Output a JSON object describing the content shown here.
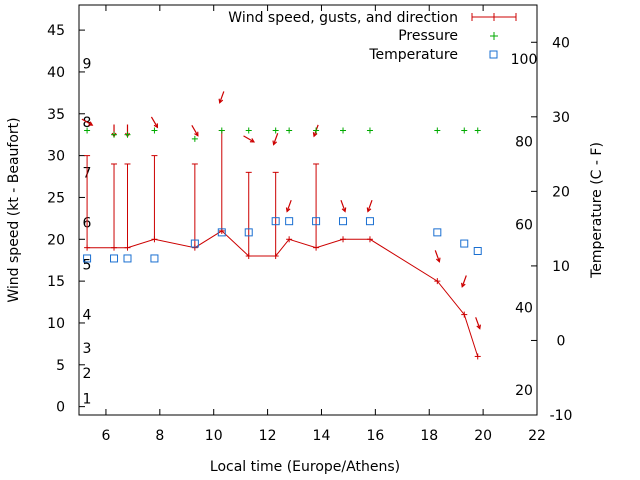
{
  "chart_data": {
    "type": "line",
    "xlabel": "Local time (Europe/Athens)",
    "ylabel_left": "Wind speed (kt - Beaufort)",
    "ylabel_right": "Temperature (C - F)",
    "xlim": [
      5,
      22
    ],
    "ylim_left": [
      -1,
      48
    ],
    "ylim_right_celsius": [
      -10,
      45
    ],
    "x_ticks": [
      6,
      8,
      10,
      12,
      14,
      16,
      18,
      20,
      22
    ],
    "y_ticks_left": [
      0,
      5,
      10,
      15,
      20,
      25,
      30,
      35,
      40,
      45
    ],
    "y_ticks_right_celsius": [
      -10,
      0,
      10,
      20,
      30,
      40
    ],
    "fahrenheit_labels": [
      20,
      40,
      60,
      80,
      100
    ],
    "beaufort_labels": [
      1,
      2,
      3,
      4,
      5,
      6,
      7,
      8,
      9
    ],
    "legend": {
      "position": "top-right",
      "entries": [
        "Wind speed, gusts, and direction",
        "Pressure",
        "Temperature"
      ]
    },
    "series": [
      {
        "name": "Wind speed, gusts, and direction",
        "color": "#cc0000",
        "points": [
          {
            "x": 5.3,
            "speed": 19,
            "gust": 30,
            "dir_deg": 300
          },
          {
            "x": 6.3,
            "speed": 19,
            "gust": 29,
            "dir_deg": 0
          },
          {
            "x": 6.8,
            "speed": 19,
            "gust": 29,
            "dir_deg": 0
          },
          {
            "x": 7.8,
            "speed": 20,
            "gust": 30,
            "dir_deg": 330
          },
          {
            "x": 9.3,
            "speed": 19,
            "gust": 29,
            "dir_deg": 330
          },
          {
            "x": 10.3,
            "speed": 21,
            "gust": 33,
            "dir_deg": 20
          },
          {
            "x": 11.3,
            "speed": 18,
            "gust": 28,
            "dir_deg": 300
          },
          {
            "x": 12.3,
            "speed": 18,
            "gust": 28,
            "dir_deg": 20
          },
          {
            "x": 12.8,
            "speed": 20,
            "gust": null,
            "dir_deg": 20
          },
          {
            "x": 13.8,
            "speed": 19,
            "gust": 29,
            "dir_deg": 20
          },
          {
            "x": 14.8,
            "speed": 20,
            "gust": null,
            "dir_deg": 340
          },
          {
            "x": 15.8,
            "speed": 20,
            "gust": null,
            "dir_deg": 20
          },
          {
            "x": 18.3,
            "speed": 15,
            "gust": null,
            "dir_deg": 340
          },
          {
            "x": 19.3,
            "speed": 11,
            "gust": null,
            "dir_deg": 20
          },
          {
            "x": 19.8,
            "speed": 6,
            "gust": null,
            "dir_deg": 340
          }
        ]
      },
      {
        "name": "Pressure",
        "color": "#00aa00",
        "points": [
          {
            "x": 5.3,
            "y": 33
          },
          {
            "x": 6.3,
            "y": 32.5
          },
          {
            "x": 6.8,
            "y": 32.5
          },
          {
            "x": 7.8,
            "y": 33
          },
          {
            "x": 9.3,
            "y": 32
          },
          {
            "x": 10.3,
            "y": 33
          },
          {
            "x": 11.3,
            "y": 33
          },
          {
            "x": 12.3,
            "y": 33
          },
          {
            "x": 12.8,
            "y": 33
          },
          {
            "x": 13.8,
            "y": 33
          },
          {
            "x": 14.8,
            "y": 33
          },
          {
            "x": 15.8,
            "y": 33
          },
          {
            "x": 18.3,
            "y": 33
          },
          {
            "x": 19.3,
            "y": 33
          },
          {
            "x": 19.8,
            "y": 33
          }
        ]
      },
      {
        "name": "Temperature",
        "color": "#1a6fd1",
        "points": [
          {
            "x": 5.3,
            "y": 11
          },
          {
            "x": 6.3,
            "y": 11
          },
          {
            "x": 6.8,
            "y": 11
          },
          {
            "x": 7.8,
            "y": 11
          },
          {
            "x": 9.3,
            "y": 13
          },
          {
            "x": 10.3,
            "y": 14.5
          },
          {
            "x": 11.3,
            "y": 14.5
          },
          {
            "x": 12.3,
            "y": 16
          },
          {
            "x": 12.8,
            "y": 16
          },
          {
            "x": 13.8,
            "y": 16
          },
          {
            "x": 14.8,
            "y": 16
          },
          {
            "x": 15.8,
            "y": 16
          },
          {
            "x": 18.3,
            "y": 14.5
          },
          {
            "x": 19.3,
            "y": 13
          },
          {
            "x": 19.8,
            "y": 12
          }
        ]
      }
    ]
  }
}
